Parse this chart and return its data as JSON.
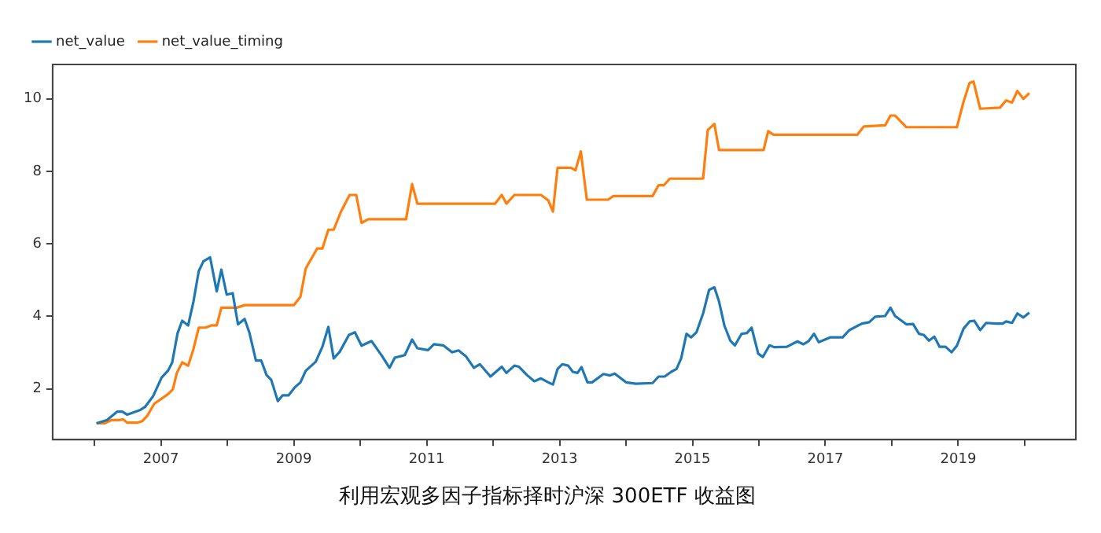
{
  "chart_data": {
    "type": "line",
    "title": "利用宏观多因子指标择时沪深 300ETF 收益图",
    "xlim": [
      2005.37,
      2020.77
    ],
    "ylim": [
      0.6,
      10.95
    ],
    "xticks": [
      {
        "value": 2006,
        "label": null
      },
      2007,
      {
        "value": 2008,
        "label": null
      },
      2009,
      {
        "value": 2010,
        "label": null
      },
      2011,
      {
        "value": 2012,
        "label": null
      },
      2013,
      {
        "value": 2014,
        "label": null
      },
      2015,
      {
        "value": 2016,
        "label": null
      },
      2017,
      {
        "value": 2018,
        "label": null
      },
      2019,
      {
        "value": 2020,
        "label": null
      }
    ],
    "yticks": [
      2,
      4,
      6,
      8,
      10
    ],
    "grid": false,
    "legend": "top left",
    "series": [
      {
        "name": "net_value",
        "color": "#1f77b4",
        "x": [
          2006.03,
          2006.19,
          2006.34,
          2006.42,
          2006.49,
          2006.69,
          2006.76,
          2006.88,
          2007.01,
          2007.11,
          2007.17,
          2007.25,
          2007.32,
          2007.41,
          2007.49,
          2007.57,
          2007.64,
          2007.74,
          2007.84,
          2007.91,
          2007.99,
          2008.08,
          2008.16,
          2008.26,
          2008.33,
          2008.43,
          2008.51,
          2008.59,
          2008.66,
          2008.76,
          2008.83,
          2008.92,
          2009.02,
          2009.1,
          2009.18,
          2009.33,
          2009.43,
          2009.52,
          2009.6,
          2009.69,
          2009.83,
          2009.92,
          2010.02,
          2010.17,
          2010.33,
          2010.44,
          2010.52,
          2010.67,
          2010.78,
          2010.86,
          2011.02,
          2011.11,
          2011.25,
          2011.38,
          2011.48,
          2011.59,
          2011.71,
          2011.8,
          2011.96,
          2012.13,
          2012.2,
          2012.32,
          2012.39,
          2012.51,
          2012.62,
          2012.72,
          2012.83,
          2012.9,
          2012.97,
          2013.04,
          2013.13,
          2013.2,
          2013.27,
          2013.33,
          2013.42,
          2013.49,
          2013.66,
          2013.76,
          2013.83,
          2014.0,
          2014.15,
          2014.4,
          2014.49,
          2014.58,
          2014.68,
          2014.76,
          2014.83,
          2014.91,
          2014.98,
          2015.06,
          2015.16,
          2015.25,
          2015.33,
          2015.4,
          2015.48,
          2015.57,
          2015.64,
          2015.74,
          2015.82,
          2015.89,
          2015.99,
          2016.06,
          2016.16,
          2016.23,
          2016.42,
          2016.58,
          2016.67,
          2016.75,
          2016.83,
          2016.9,
          2017.07,
          2017.26,
          2017.36,
          2017.55,
          2017.66,
          2017.75,
          2017.9,
          2017.98,
          2018.05,
          2018.22,
          2018.32,
          2018.41,
          2018.48,
          2018.56,
          2018.64,
          2018.72,
          2018.81,
          2018.9,
          2018.98,
          2019.08,
          2019.17,
          2019.24,
          2019.33,
          2019.42,
          2019.57,
          2019.67,
          2019.72,
          2019.81,
          2019.89,
          2019.98,
          2020.07
        ],
        "values": [
          1.05,
          1.14,
          1.37,
          1.37,
          1.29,
          1.42,
          1.5,
          1.79,
          2.31,
          2.51,
          2.73,
          3.53,
          3.88,
          3.75,
          4.41,
          5.25,
          5.52,
          5.63,
          4.69,
          5.29,
          4.6,
          4.64,
          3.78,
          3.93,
          3.56,
          2.78,
          2.78,
          2.38,
          2.25,
          1.66,
          1.82,
          1.82,
          2.05,
          2.18,
          2.5,
          2.75,
          3.16,
          3.71,
          2.84,
          3.02,
          3.49,
          3.56,
          3.19,
          3.32,
          2.9,
          2.58,
          2.86,
          2.93,
          3.36,
          3.12,
          3.07,
          3.23,
          3.2,
          3.01,
          3.06,
          2.9,
          2.58,
          2.68,
          2.34,
          2.61,
          2.44,
          2.64,
          2.61,
          2.38,
          2.21,
          2.29,
          2.18,
          2.12,
          2.55,
          2.68,
          2.64,
          2.47,
          2.44,
          2.6,
          2.18,
          2.18,
          2.41,
          2.37,
          2.42,
          2.18,
          2.14,
          2.16,
          2.34,
          2.34,
          2.47,
          2.55,
          2.84,
          3.52,
          3.42,
          3.56,
          4.08,
          4.73,
          4.8,
          4.41,
          3.75,
          3.33,
          3.2,
          3.52,
          3.54,
          3.69,
          2.97,
          2.88,
          3.2,
          3.15,
          3.16,
          3.31,
          3.23,
          3.32,
          3.52,
          3.29,
          3.42,
          3.42,
          3.62,
          3.8,
          3.84,
          3.99,
          4.01,
          4.24,
          4.01,
          3.78,
          3.79,
          3.52,
          3.49,
          3.33,
          3.44,
          3.16,
          3.16,
          3.01,
          3.19,
          3.66,
          3.86,
          3.88,
          3.62,
          3.82,
          3.8,
          3.8,
          3.86,
          3.82,
          4.08,
          3.97,
          4.1
        ]
      },
      {
        "name": "net_value_timing",
        "color": "#ff7f0e",
        "x": [
          2006.03,
          2006.15,
          2006.26,
          2006.38,
          2006.43,
          2006.49,
          2006.65,
          2006.72,
          2006.8,
          2006.9,
          2007.01,
          2007.11,
          2007.18,
          2007.24,
          2007.32,
          2007.41,
          2007.49,
          2007.57,
          2007.67,
          2007.76,
          2007.84,
          2007.91,
          2008.14,
          2008.26,
          2009.0,
          2009.1,
          2009.18,
          2009.35,
          2009.43,
          2009.52,
          2009.6,
          2009.71,
          2009.84,
          2009.94,
          2010.02,
          2010.12,
          2010.69,
          2010.78,
          2010.86,
          2012.03,
          2012.13,
          2012.2,
          2012.32,
          2012.72,
          2012.83,
          2012.9,
          2012.97,
          2013.17,
          2013.24,
          2013.32,
          2013.41,
          2013.73,
          2013.81,
          2014.4,
          2014.49,
          2014.57,
          2014.66,
          2015.16,
          2015.23,
          2015.33,
          2015.4,
          2016.07,
          2016.14,
          2016.22,
          2017.48,
          2017.58,
          2017.9,
          2017.98,
          2018.05,
          2018.22,
          2018.98,
          2019.08,
          2019.17,
          2019.23,
          2019.33,
          2019.63,
          2019.72,
          2019.81,
          2019.89,
          2019.98,
          2020.07
        ],
        "values": [
          1.05,
          1.05,
          1.14,
          1.14,
          1.16,
          1.07,
          1.07,
          1.11,
          1.27,
          1.59,
          1.73,
          1.86,
          1.99,
          2.44,
          2.73,
          2.64,
          3.1,
          3.69,
          3.69,
          3.75,
          3.75,
          4.24,
          4.24,
          4.31,
          4.31,
          4.54,
          5.32,
          5.87,
          5.87,
          6.39,
          6.39,
          6.89,
          7.35,
          7.35,
          6.58,
          6.68,
          6.68,
          7.65,
          7.11,
          7.11,
          7.35,
          7.11,
          7.35,
          7.35,
          7.2,
          6.89,
          8.1,
          8.1,
          8.03,
          8.55,
          7.22,
          7.22,
          7.32,
          7.32,
          7.62,
          7.62,
          7.8,
          7.8,
          9.14,
          9.31,
          8.59,
          8.59,
          9.11,
          9.01,
          9.01,
          9.24,
          9.27,
          9.54,
          9.54,
          9.22,
          9.22,
          9.92,
          10.44,
          10.48,
          9.73,
          9.76,
          9.96,
          9.9,
          10.22,
          10.0,
          10.16
        ]
      }
    ]
  }
}
